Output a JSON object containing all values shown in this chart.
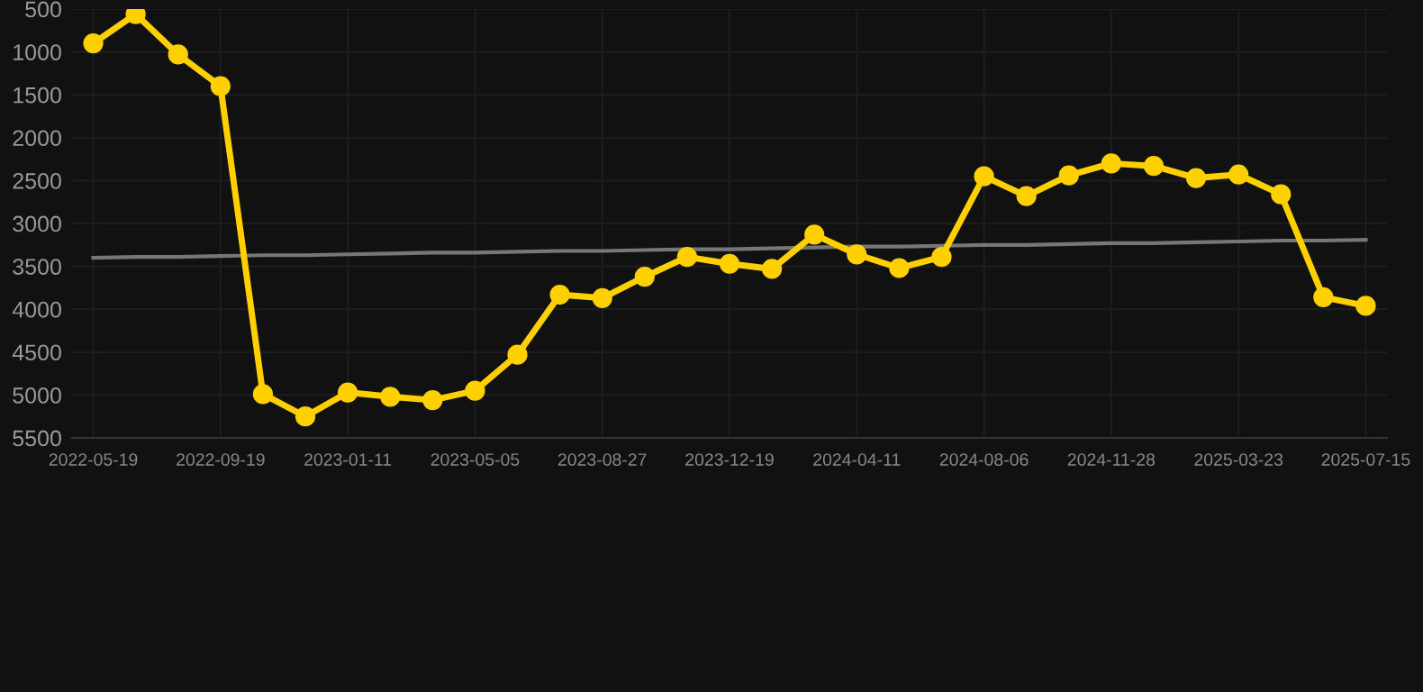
{
  "chart_data": {
    "type": "line",
    "categories": [
      "2022-05-19",
      null,
      null,
      "2022-09-19",
      null,
      null,
      "2023-01-11",
      null,
      null,
      "2023-05-05",
      null,
      null,
      "2023-08-27",
      null,
      null,
      "2023-12-19",
      null,
      null,
      "2024-04-11",
      null,
      null,
      "2024-08-06",
      null,
      null,
      "2024-11-28",
      null,
      null,
      "2025-03-23",
      null,
      null,
      "2025-07-15"
    ],
    "series": [
      {
        "color": "#ffd000",
        "marker": "circle",
        "values": [
          900,
          560,
          1030,
          1400,
          4990,
          5250,
          4970,
          5020,
          5060,
          4950,
          4530,
          3830,
          3870,
          3620,
          3390,
          3470,
          3530,
          3130,
          3360,
          3520,
          3390,
          2450,
          2680,
          2440,
          2300,
          2330,
          2470,
          2430,
          2660,
          3860,
          3960
        ]
      },
      {
        "color": "#777777",
        "marker": "none",
        "values": [
          3400,
          3390,
          3390,
          3380,
          3370,
          3370,
          3360,
          3350,
          3340,
          3340,
          3330,
          3320,
          3320,
          3310,
          3300,
          3300,
          3290,
          3280,
          3270,
          3270,
          3260,
          3250,
          3250,
          3240,
          3230,
          3230,
          3220,
          3210,
          3200,
          3200,
          3190
        ]
      }
    ],
    "ylim": [
      5500,
      500
    ],
    "yticks": [
      500,
      1000,
      1500,
      2000,
      2500,
      3000,
      3500,
      4000,
      4500,
      5000,
      5500
    ],
    "grid": true,
    "legend": false
  }
}
